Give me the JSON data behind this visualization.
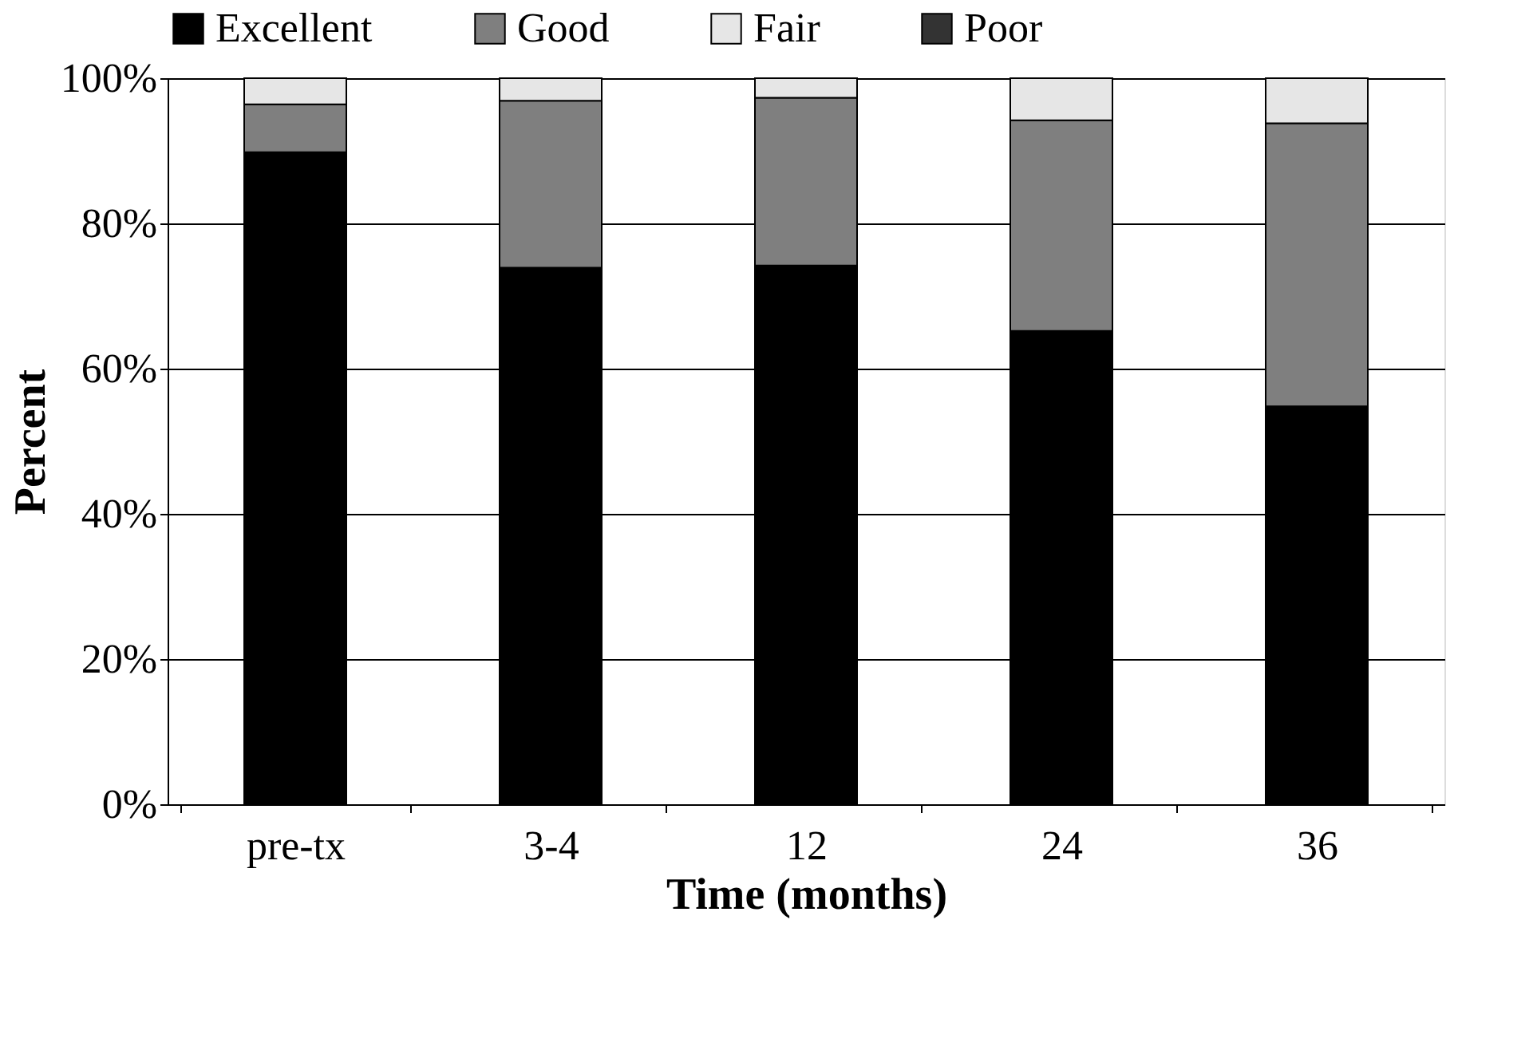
{
  "chart_data": {
    "type": "bar",
    "stacked": true,
    "xlabel": "Time (months)",
    "ylabel": "Percent",
    "categories": [
      "pre-tx",
      "3-4",
      "12",
      "24",
      "36"
    ],
    "series": [
      {
        "name": "Excellent",
        "color": "#000000",
        "values": [
          89.8,
          73.9,
          74.2,
          65.2,
          54.8
        ]
      },
      {
        "name": "Good",
        "color": "#7f7f7f",
        "values": [
          6.6,
          23.0,
          23.1,
          29.0,
          39.0
        ]
      },
      {
        "name": "Fair",
        "color": "#e6e6e6",
        "values": [
          3.6,
          3.1,
          2.7,
          5.8,
          6.2
        ]
      },
      {
        "name": "Poor",
        "color": "#333333",
        "values": [
          0,
          0,
          0,
          0,
          0
        ]
      }
    ],
    "ylim": [
      0,
      100
    ],
    "yticks": [
      {
        "value": 0,
        "label": "0%"
      },
      {
        "value": 20,
        "label": "20%"
      },
      {
        "value": 40,
        "label": "40%"
      },
      {
        "value": 60,
        "label": "60%"
      },
      {
        "value": 80,
        "label": "80%"
      },
      {
        "value": 100,
        "label": "100%"
      }
    ],
    "grid": "y",
    "legend": "top"
  }
}
